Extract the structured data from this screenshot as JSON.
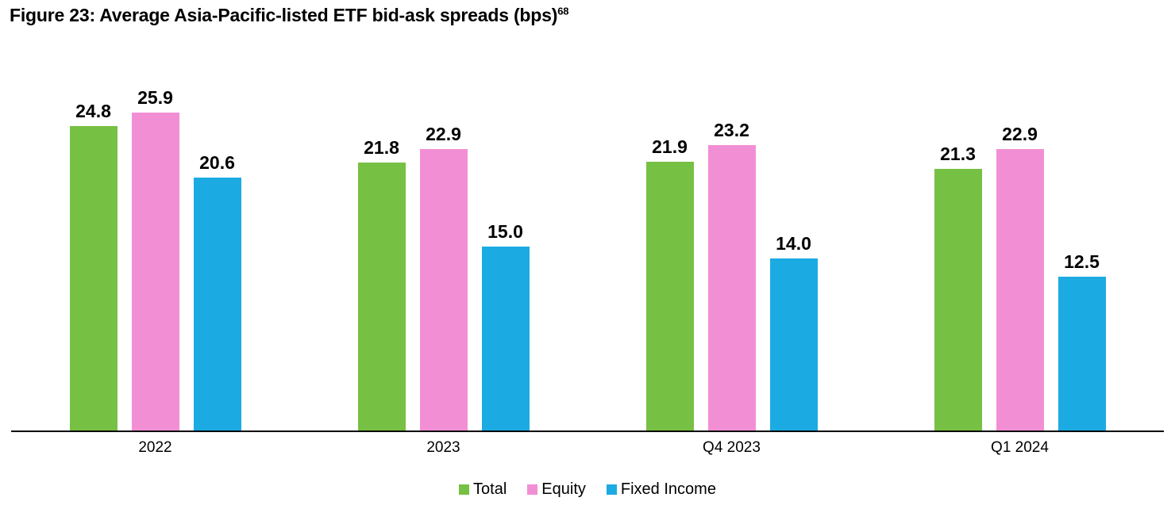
{
  "title": {
    "text": "Figure 23: Average Asia-Pacific-listed ETF bid-ask spreads (bps)",
    "footnote_marker": "68"
  },
  "chart_data": {
    "type": "bar",
    "title": "Figure 23: Average Asia-Pacific-listed ETF bid-ask spreads (bps)",
    "categories": [
      "2022",
      "2023",
      "Q4 2023",
      "Q1 2024"
    ],
    "series": [
      {
        "name": "Total",
        "color": "#76c043",
        "values": [
          24.8,
          21.8,
          21.9,
          21.3
        ]
      },
      {
        "name": "Equity",
        "color": "#f28fd4",
        "values": [
          25.9,
          22.9,
          23.2,
          22.9
        ]
      },
      {
        "name": "Fixed Income",
        "color": "#1babe2",
        "values": [
          20.6,
          15.0,
          14.0,
          12.5
        ]
      }
    ],
    "ylim": [
      0,
      30
    ],
    "grid": false,
    "axis_line_color": "#000000",
    "legend_position": "bottom",
    "data_labels": true,
    "value_format": "one_decimal"
  }
}
